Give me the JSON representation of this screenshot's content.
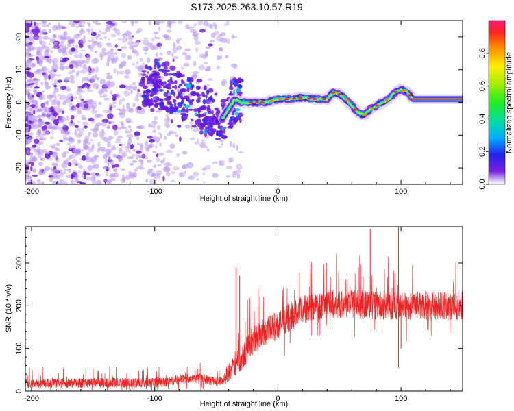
{
  "title": "S173.2025.263.10.57.R19",
  "colors": {
    "snr_line": "#ee2222",
    "axis": "#000000",
    "signal_low": "#8a2be2",
    "background": "#ffffff"
  },
  "chart_data": [
    {
      "type": "heatmap",
      "name": "spectrogram",
      "xlabel": "Height of straight line (km)",
      "ylabel": "Frequency (Hz)",
      "xlim": [
        -205,
        150
      ],
      "ylim": [
        -25,
        25
      ],
      "x_ticks": [
        -200,
        -100,
        0,
        100
      ],
      "x_tick_labels": [
        "-200",
        "-100",
        "0",
        "100"
      ],
      "y_ticks": [
        -20,
        -10,
        0,
        10,
        20
      ],
      "y_tick_labels": [
        "-20",
        "-10",
        "0",
        "10",
        "20"
      ],
      "ridge": {
        "x": [
          -100,
          -90,
          -80,
          -70,
          -60,
          -50,
          -45,
          -40,
          -35,
          -30,
          -20,
          -10,
          0,
          10,
          20,
          30,
          40,
          45,
          50,
          55,
          60,
          65,
          70,
          75,
          80,
          90,
          95,
          100,
          105,
          110,
          150
        ],
        "y": [
          6,
          4,
          2,
          0,
          -2,
          -4,
          -5,
          -2,
          1,
          0,
          0,
          0,
          1,
          1,
          1.5,
          1,
          1,
          3,
          2.5,
          1,
          -1,
          -3,
          -4,
          -2,
          -1,
          1,
          3,
          4,
          3,
          1,
          1
        ]
      },
      "colorbar": {
        "label": "Normalized spectral amplitude",
        "range": [
          0,
          1
        ],
        "ticks": [
          0.0,
          0.2,
          0.4,
          0.6,
          0.8
        ],
        "tick_labels": [
          "0.0",
          "0.2",
          "0.4",
          "0.6",
          "0.8"
        ]
      }
    },
    {
      "type": "line",
      "name": "snr",
      "xlabel": "Height of straight line (km)",
      "ylabel": "SNR (10 * v/v)",
      "xlim": [
        -205,
        150
      ],
      "ylim": [
        0,
        385
      ],
      "x_ticks": [
        -200,
        -100,
        0,
        100
      ],
      "x_tick_labels": [
        "-200",
        "-100",
        "0",
        "100"
      ],
      "y_ticks": [
        0,
        100,
        200,
        300
      ],
      "y_tick_labels": [
        "0",
        "100",
        "200",
        "300"
      ],
      "series": [
        {
          "name": "SNR",
          "envelope_x": [
            -205,
            -100,
            -90,
            -80,
            -70,
            -60,
            -50,
            -45,
            -40,
            -35,
            -30,
            -25,
            -20,
            -10,
            0,
            10,
            20,
            30,
            40,
            60,
            80,
            100,
            120,
            150
          ],
          "envelope_mean": [
            18,
            20,
            22,
            28,
            30,
            28,
            22,
            25,
            45,
            60,
            80,
            100,
            120,
            140,
            155,
            175,
            190,
            200,
            205,
            205,
            200,
            200,
            200,
            200
          ],
          "noise_amplitude": 14,
          "spikes": [
            {
              "x": -34,
              "y": 290
            },
            {
              "x": -31,
              "y": 270
            },
            {
              "x": 75,
              "y": 380
            },
            {
              "x": 98,
              "y": 385
            },
            {
              "x": 98,
              "y": 55
            },
            {
              "x": 100,
              "y": 100
            }
          ]
        }
      ]
    }
  ]
}
